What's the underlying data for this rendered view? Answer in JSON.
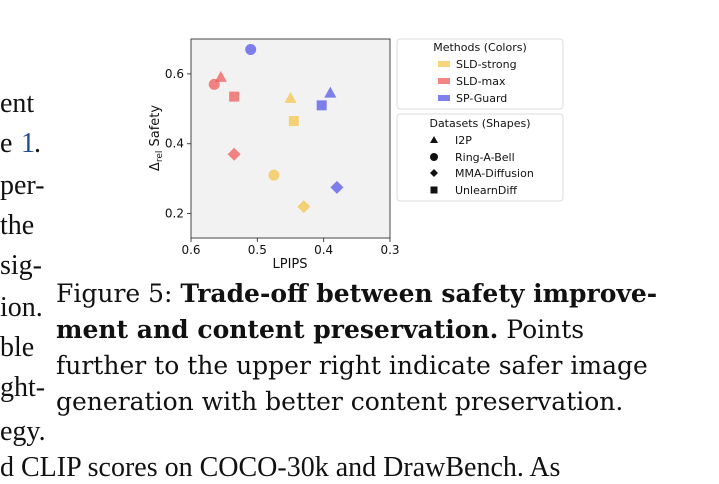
{
  "left_column_fragments": [
    "ent",
    "e",
    "1",
    ".",
    "per-",
    "the",
    "sig-",
    "ion.",
    "ble",
    "ght-",
    "egy."
  ],
  "caption": {
    "label": "Figure 5:",
    "bold": "Trade-off between safety improve-ment and content preservation.",
    "rest": "Points further to the upper right indicate safer image generation with better content preservation."
  },
  "bottom_fragment": "d CLIP scores on COCO-30k and DrawBench. As",
  "chart_data": {
    "type": "scatter",
    "xlabel": "LPIPS",
    "ylabel_main": "Δ",
    "ylabel_sub": "rel",
    "ylabel_rest": " Safety",
    "x_reversed": true,
    "xlim": [
      0.6,
      0.3
    ],
    "ylim": [
      0.13,
      0.7
    ],
    "xticks": [
      0.6,
      0.5,
      0.4,
      0.3
    ],
    "xtick_labels": [
      "0.6",
      "0.5",
      "0.4",
      "0.3"
    ],
    "yticks": [
      0.2,
      0.4,
      0.6
    ],
    "ytick_labels": [
      "0.2",
      "0.4",
      "0.6"
    ],
    "grid": false,
    "legend_methods": {
      "title": "Methods (Colors)",
      "items": [
        {
          "name": "SLD-strong",
          "color": "#f4c54e"
        },
        {
          "name": "SLD-max",
          "color": "#ef5c5c"
        },
        {
          "name": "SP-Guard",
          "color": "#5656e8"
        }
      ]
    },
    "legend_datasets": {
      "title": "Datasets (Shapes)",
      "items": [
        {
          "name": "I2P",
          "shape": "triangle"
        },
        {
          "name": "Ring-A-Bell",
          "shape": "circle"
        },
        {
          "name": "MMA-Diffusion",
          "shape": "diamond"
        },
        {
          "name": "UnlearnDiff",
          "shape": "square"
        }
      ]
    },
    "points": [
      {
        "method": "SLD-strong",
        "dataset": "I2P",
        "x": 0.45,
        "y": 0.53
      },
      {
        "method": "SLD-strong",
        "dataset": "Ring-A-Bell",
        "x": 0.475,
        "y": 0.31
      },
      {
        "method": "SLD-strong",
        "dataset": "MMA-Diffusion",
        "x": 0.43,
        "y": 0.22
      },
      {
        "method": "SLD-strong",
        "dataset": "UnlearnDiff",
        "x": 0.445,
        "y": 0.465
      },
      {
        "method": "SLD-max",
        "dataset": "I2P",
        "x": 0.555,
        "y": 0.59
      },
      {
        "method": "SLD-max",
        "dataset": "Ring-A-Bell",
        "x": 0.565,
        "y": 0.57
      },
      {
        "method": "SLD-max",
        "dataset": "MMA-Diffusion",
        "x": 0.535,
        "y": 0.37
      },
      {
        "method": "SLD-max",
        "dataset": "UnlearnDiff",
        "x": 0.535,
        "y": 0.535
      },
      {
        "method": "SP-Guard",
        "dataset": "I2P",
        "x": 0.39,
        "y": 0.545
      },
      {
        "method": "SP-Guard",
        "dataset": "Ring-A-Bell",
        "x": 0.51,
        "y": 0.67
      },
      {
        "method": "SP-Guard",
        "dataset": "MMA-Diffusion",
        "x": 0.38,
        "y": 0.275
      },
      {
        "method": "SP-Guard",
        "dataset": "UnlearnDiff",
        "x": 0.403,
        "y": 0.51
      }
    ]
  }
}
